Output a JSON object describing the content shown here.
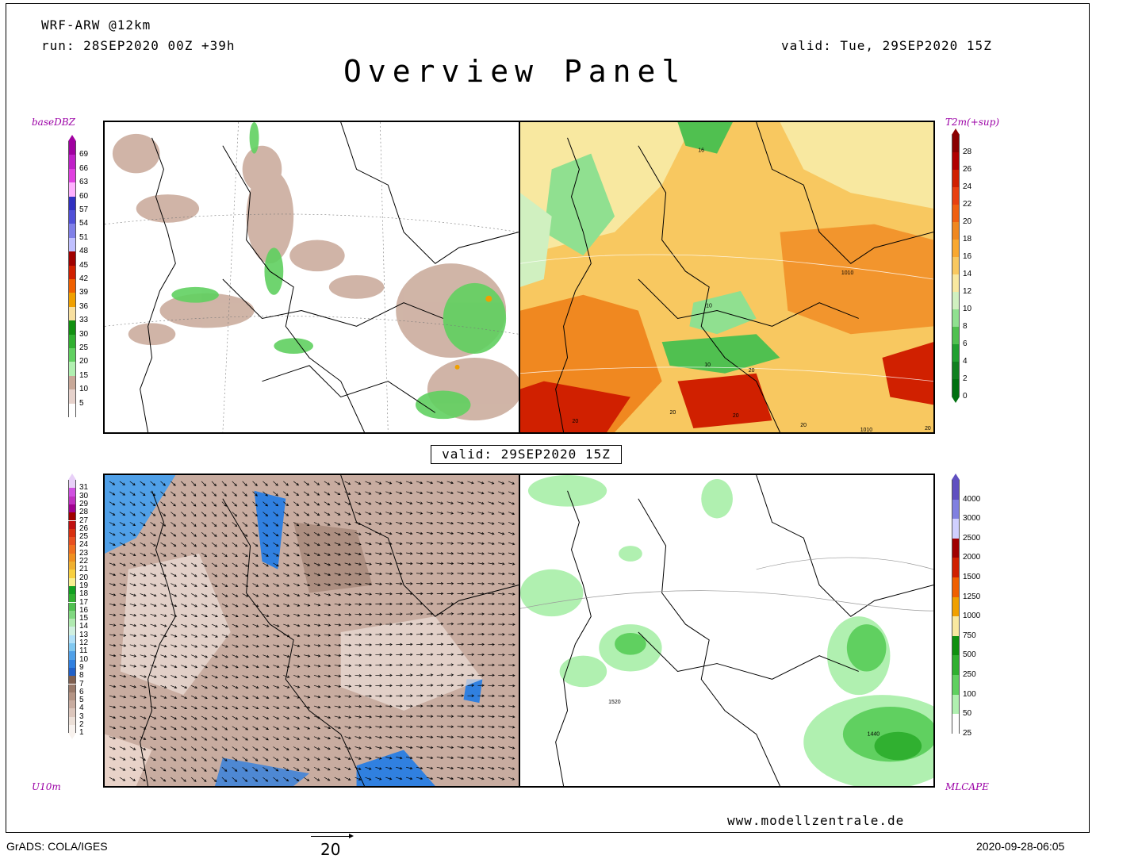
{
  "header": {
    "model": "WRF-ARW @12km",
    "run": "run: 28SEP2020 00Z +39h",
    "valid_top": "valid: Tue, 29SEP2020 15Z",
    "title": "Overview Panel",
    "valid_box": "valid: 29SEP2020 15Z"
  },
  "panels": {
    "top_left": {
      "label": "baseDBZ"
    },
    "top_right": {
      "label": "T2m(+sup)",
      "annotations": [
        "16",
        "1010",
        "10",
        "10",
        "20",
        "20",
        "20",
        "20",
        "20",
        "20",
        "1010",
        "20"
      ]
    },
    "bottom_left": {
      "label": "U10m"
    },
    "bottom_right": {
      "label": "MLCAPE",
      "annotations": [
        "1520",
        "1440"
      ]
    }
  },
  "scales": {
    "dbz": {
      "labels": [
        "69",
        "66",
        "63",
        "60",
        "57",
        "54",
        "51",
        "48",
        "45",
        "42",
        "39",
        "36",
        "33",
        "30",
        "25",
        "20",
        "15",
        "10",
        "5"
      ],
      "colors": [
        "#a000a0",
        "#c020c8",
        "#e040e0",
        "#ffb0ff",
        "#3030c0",
        "#5050d8",
        "#8080e8",
        "#c0c0ff",
        "#a00000",
        "#d02000",
        "#f06000",
        "#f0a000",
        "#f8e0a0",
        "#109010",
        "#30b030",
        "#60d060",
        "#b0f0b0",
        "#c8a898",
        "#e6d2cc",
        "#ffffff"
      ]
    },
    "t2m": {
      "labels": [
        "28",
        "26",
        "24",
        "22",
        "20",
        "18",
        "16",
        "14",
        "12",
        "10",
        "8",
        "6",
        "4",
        "2",
        "0"
      ],
      "colors": [
        "#8a0000",
        "#b00000",
        "#d02000",
        "#e84010",
        "#f06010",
        "#f08820",
        "#f8a830",
        "#f8c860",
        "#f8e8a0",
        "#d0f0c0",
        "#90e090",
        "#50c050",
        "#20a030",
        "#108020",
        "#007010"
      ]
    },
    "u10": {
      "labels": [
        "31",
        "30",
        "29",
        "28",
        "27",
        "26",
        "25",
        "24",
        "23",
        "22",
        "21",
        "20",
        "19",
        "18",
        "17",
        "16",
        "15",
        "14",
        "13",
        "12",
        "11",
        "10",
        "9",
        "8",
        "7",
        "6",
        "5",
        "4",
        "3",
        "2",
        "1"
      ],
      "colors": [
        "#e8d0f8",
        "#d050e0",
        "#c030c0",
        "#a00090",
        "#a00000",
        "#c01010",
        "#d83010",
        "#e85020",
        "#f07020",
        "#f09020",
        "#f0b030",
        "#f8d040",
        "#f8f090",
        "#10a020",
        "#30b030",
        "#50c050",
        "#80d880",
        "#b0eab0",
        "#d0f0e0",
        "#b0e0f8",
        "#80c8f0",
        "#50a0e8",
        "#3080e0",
        "#2060c8",
        "#806050",
        "#9a7a6a",
        "#b49484",
        "#c8aca0",
        "#dcc6bc",
        "#ece0d8",
        "#f8f2ee"
      ]
    },
    "mlcape": {
      "labels": [
        "4000",
        "3000",
        "2500",
        "2000",
        "1500",
        "1250",
        "1000",
        "750",
        "500",
        "250",
        "100",
        "50",
        "25"
      ],
      "colors": [
        "#6050c0",
        "#8080e0",
        "#d0d0ff",
        "#a00000",
        "#d02000",
        "#f06000",
        "#f0a000",
        "#f8e8a0",
        "#109010",
        "#30b030",
        "#60d060",
        "#b0f0b0",
        "#ffffff"
      ]
    }
  },
  "footer": {
    "url": "www.modellzentrale.de",
    "grads": "GrADS: COLA/IGES",
    "vector_ref": "20",
    "timestamp": "2020-09-28-06:05"
  }
}
